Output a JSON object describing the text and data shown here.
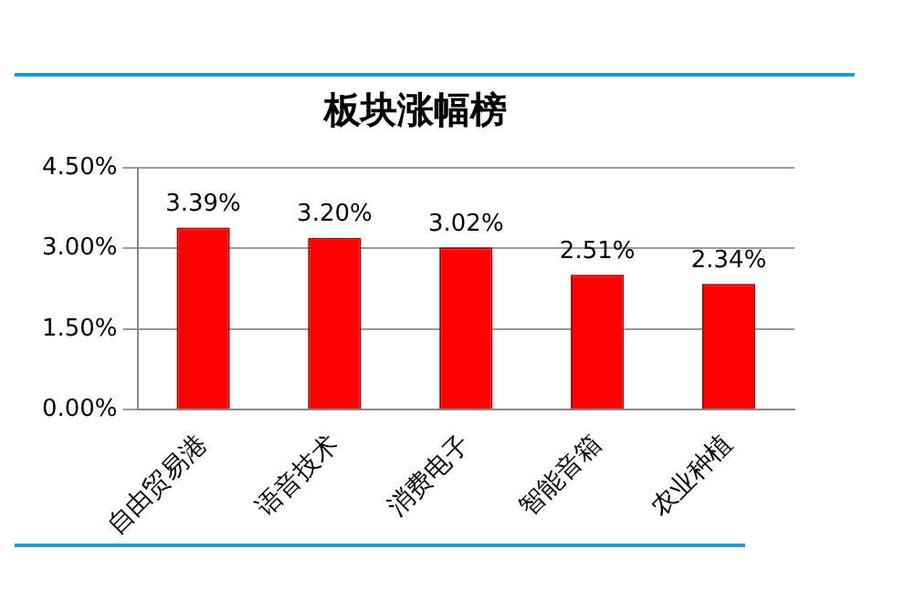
{
  "chart_data": {
    "type": "bar",
    "title": "板块涨幅榜",
    "categories": [
      "自由贸易港",
      "语音技术",
      "消费电子",
      "智能音箱",
      "农业种植"
    ],
    "values": [
      3.39,
      3.2,
      3.02,
      2.51,
      2.34
    ],
    "value_labels": [
      "3.39%",
      "3.20%",
      "3.02%",
      "2.51%",
      "2.34%"
    ],
    "color": "#ff0000",
    "ylim": [
      0,
      4.5
    ],
    "yticks": [
      {
        "value": 0,
        "label": "0.00%"
      },
      {
        "value": 1.5,
        "label": "1.50%"
      },
      {
        "value": 3,
        "label": "3.00%"
      },
      {
        "value": 4.5,
        "label": "4.50%"
      }
    ],
    "grid": "y",
    "legend": false
  }
}
